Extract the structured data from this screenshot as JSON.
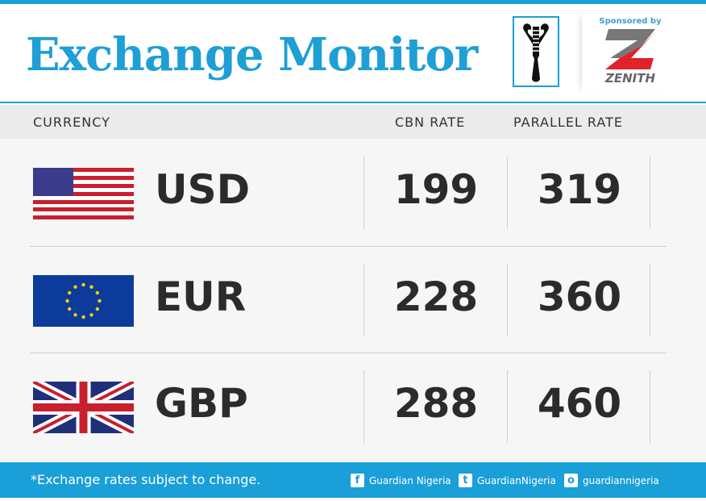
{
  "header": {
    "title": "Exchange Monitor",
    "sponsor_label": "Sponsored by",
    "sponsor_name": "ZENITH"
  },
  "columns": {
    "currency": "CURRENCY",
    "cbn": "CBN RATE",
    "parallel": "PARALLEL RATE"
  },
  "rows": [
    {
      "code": "USD",
      "flag": "us-flag-icon",
      "cbn": "199",
      "parallel": "319"
    },
    {
      "code": "EUR",
      "flag": "eu-flag-icon",
      "cbn": "228",
      "parallel": "360"
    },
    {
      "code": "GBP",
      "flag": "uk-flag-icon",
      "cbn": "288",
      "parallel": "460"
    }
  ],
  "footer": {
    "note": "*Exchange rates subject to change.",
    "facebook": "Guardian Nigeria",
    "twitter": "GuardianNigeria",
    "instagram": "guardiannigeria"
  },
  "colors": {
    "accent": "#1a9fd8",
    "zenith_red": "#e0222a",
    "zenith_gray": "#777777"
  }
}
